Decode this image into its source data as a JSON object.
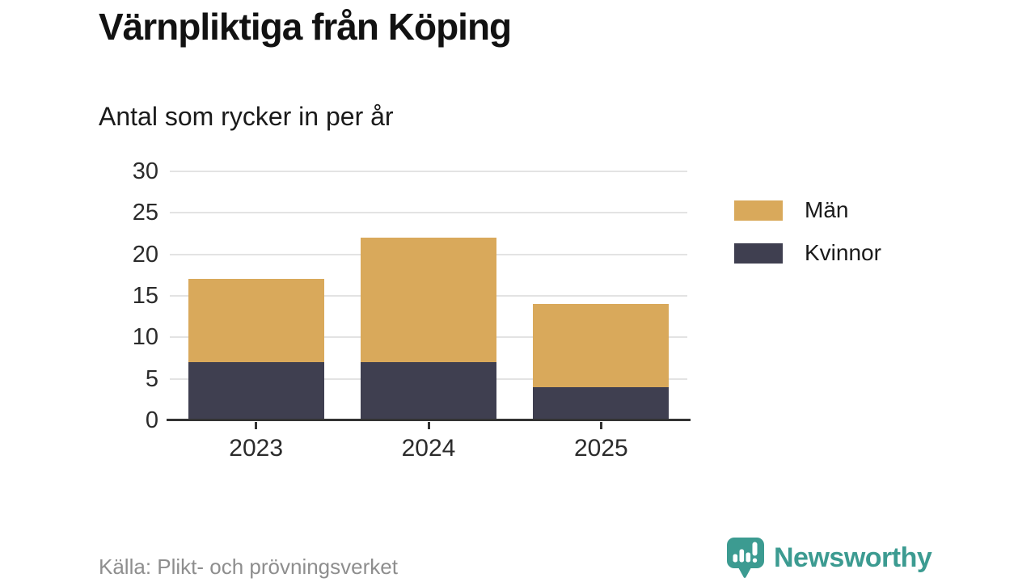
{
  "header": {
    "title": "Värnpliktiga från Köping",
    "subtitle": "Antal som rycker in per år"
  },
  "chart_data": {
    "type": "bar",
    "stacked": true,
    "title": "Värnpliktiga från Köping",
    "subtitle": "Antal som rycker in per år",
    "categories": [
      "2023",
      "2024",
      "2025"
    ],
    "series": [
      {
        "name": "Män",
        "color": "#D9A95B",
        "values": [
          10,
          15,
          10
        ]
      },
      {
        "name": "Kvinnor",
        "color": "#3F3F50",
        "values": [
          7,
          7,
          4
        ]
      }
    ],
    "stacked_totals": [
      17,
      22,
      14
    ],
    "ylim": [
      0,
      30
    ],
    "yticks": [
      0,
      5,
      10,
      15,
      20,
      25,
      30
    ],
    "grid": "horizontal",
    "legend_position": "right",
    "xlabel": "",
    "ylabel": ""
  },
  "legend": {
    "items": [
      {
        "label": "Män",
        "color": "#D9A95B"
      },
      {
        "label": "Kvinnor",
        "color": "#3F3F50"
      }
    ]
  },
  "footer": {
    "source": "Källa: Plikt- och prövningsverket",
    "brand": "Newsworthy"
  },
  "colors": {
    "men": "#D9A95B",
    "women": "#3F3F50",
    "brand_teal": "#3C9B91",
    "grid": "#E3E3E3",
    "axis": "#333333",
    "source_text": "#8E8E8E"
  },
  "icons": {
    "brand": "newsworthy-speech-bubble-bar-chart-icon"
  }
}
